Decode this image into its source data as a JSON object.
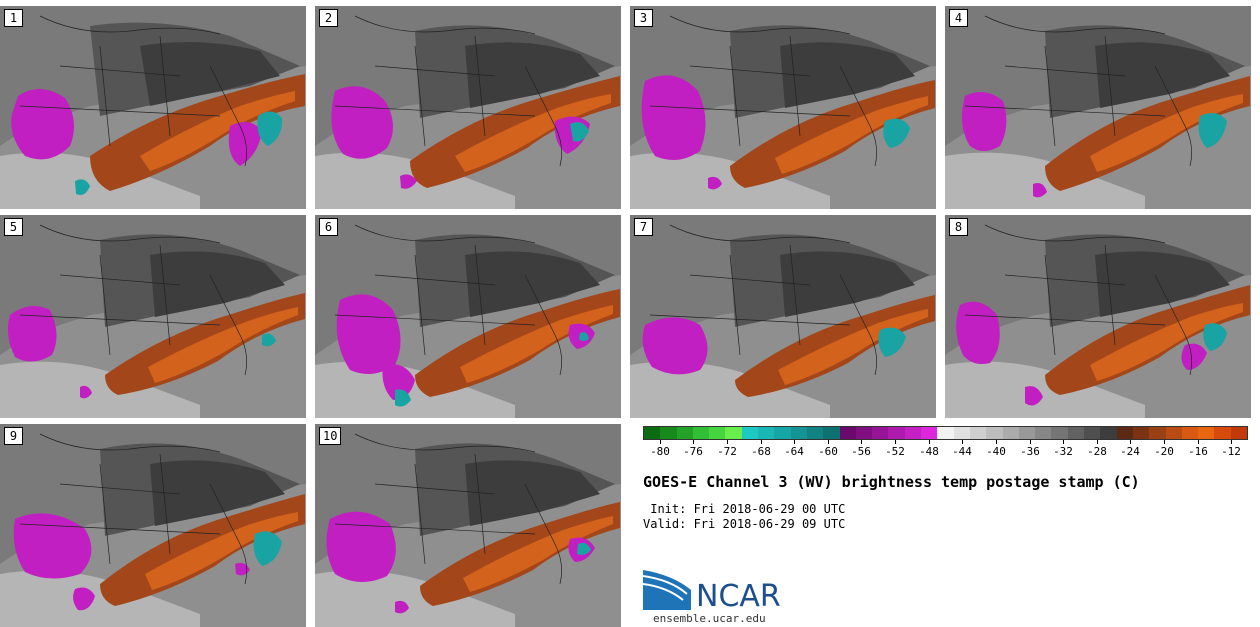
{
  "panels": [
    {
      "label": "1"
    },
    {
      "label": "2"
    },
    {
      "label": "3"
    },
    {
      "label": "4"
    },
    {
      "label": "5"
    },
    {
      "label": "6"
    },
    {
      "label": "7"
    },
    {
      "label": "8"
    },
    {
      "label": "9"
    },
    {
      "label": "10"
    }
  ],
  "colorbar": {
    "colors": [
      "#0b6b10",
      "#168a1b",
      "#22a327",
      "#30bf35",
      "#45d63f",
      "#6aee4b",
      "#1dc9c3",
      "#1ab8b5",
      "#17a6a6",
      "#149494",
      "#118383",
      "#0e7171",
      "#6a0a6a",
      "#7f0f80",
      "#961596",
      "#ad1aad",
      "#c420c4",
      "#dc27dc",
      "#f2f2f2",
      "#e0e0e0",
      "#cfcfcf",
      "#bdbdbd",
      "#ababab",
      "#999999",
      "#878787",
      "#757575",
      "#626262",
      "#4f4f4f",
      "#3d3d3d",
      "#5a2a14",
      "#7a3313",
      "#994014",
      "#b84c13",
      "#d85a12",
      "#e8660f",
      "#d84a0c",
      "#c23a0a"
    ],
    "tick_labels": [
      "-80",
      "-76",
      "-72",
      "-68",
      "-64",
      "-60",
      "-56",
      "-52",
      "-48",
      "-44",
      "-40",
      "-36",
      "-32",
      "-28",
      "-24",
      "-20",
      "-16",
      "-12"
    ]
  },
  "title": "GOES-E Channel 3 (WV) brightness temp postage stamp (C)",
  "init": " Init: Fri 2018-06-29 00 UTC",
  "valid": "Valid: Fri 2018-06-29 09 UTC",
  "logo": {
    "text": "NCAR",
    "color": "#1d4f8f"
  },
  "site": "ensemble.ucar.edu"
}
